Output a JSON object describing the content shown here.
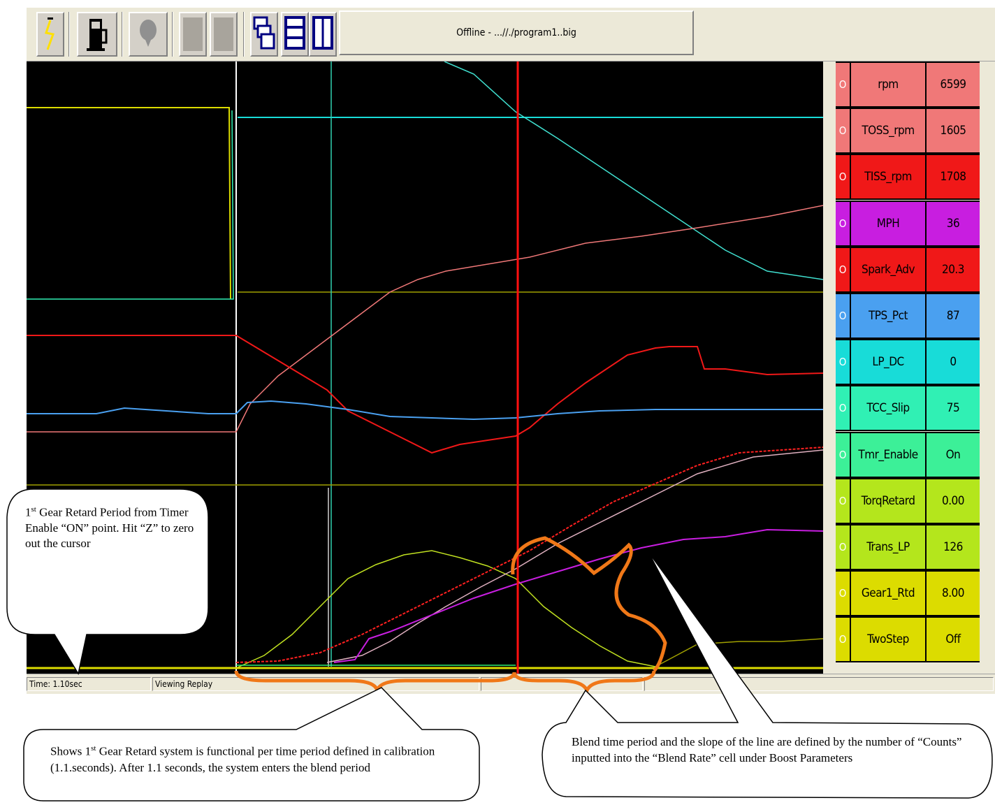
{
  "toolbar": {
    "buttons": [
      {
        "icon": "lightning-icon"
      },
      {
        "icon": "fuel-pump-icon"
      },
      {
        "icon": "balloon-icon"
      },
      {
        "icon": "blank-button-icon"
      },
      {
        "icon": "blank-button-icon"
      },
      {
        "icon": "cascade-windows-icon"
      },
      {
        "icon": "tile-horizontal-icon"
      },
      {
        "icon": "tile-vertical-icon"
      }
    ],
    "status": "Offline - ...//./program1..big"
  },
  "gauges": [
    {
      "check": "O",
      "name": "rpm",
      "value": "6599",
      "color": "#f07878"
    },
    {
      "check": "O",
      "name": "TOSS_rpm",
      "value": "1605",
      "color": "#f07878"
    },
    {
      "check": "O",
      "name": "TISS_rpm",
      "value": "1708",
      "color": "#f01818"
    },
    {
      "check": "O",
      "name": "MPH",
      "value": "36",
      "color": "#c81ee0"
    },
    {
      "check": "O",
      "name": "Spark_Adv",
      "value": "20.3",
      "color": "#f01818"
    },
    {
      "check": "O",
      "name": "TPS_Pct",
      "value": "87",
      "color": "#4aa0f0"
    },
    {
      "check": "O",
      "name": "LP_DC",
      "value": "0",
      "color": "#18dcd8"
    },
    {
      "check": "O",
      "name": "TCC_Slip",
      "value": "75",
      "color": "#30f0b4"
    },
    {
      "check": "O",
      "name": "Tmr_Enable",
      "value": "On",
      "color": "#3cf098"
    },
    {
      "check": "O",
      "name": "TorqRetard",
      "value": "0.00",
      "color": "#b4e61c"
    },
    {
      "check": "O",
      "name": "Trans_LP",
      "value": "126",
      "color": "#b4e61c"
    },
    {
      "check": "O",
      "name": "Gear1_Rtd",
      "value": "8.00",
      "color": "#dcdc00"
    },
    {
      "check": "O",
      "name": "TwoStep",
      "value": "Off",
      "color": "#dcdc00"
    }
  ],
  "statusbar": {
    "time": "Time: 1.10sec",
    "mode": "Viewing Replay"
  },
  "callouts": {
    "left_top": {
      "prefix": "1",
      "sup": "st",
      "rest": " Gear Retard Period from Timer Enable “ON” point. Hit “Z” to zero out the cursor"
    },
    "bottom_left": {
      "prefix": "Shows 1",
      "sup": "st",
      "rest": " Gear Retard system is functional per time period defined in calibration (1.1.seconds).  After 1.1 seconds, the system enters the blend period"
    },
    "bottom_right": {
      "text": "Blend time period and the slope of the line are defined by the number of “Counts” inputted into the “Blend Rate” cell under Boost Parameters"
    }
  },
  "colors": {
    "plot_bg": "#000000",
    "cursor_red": "#ff1010",
    "annotation_orange": "#f07818"
  }
}
